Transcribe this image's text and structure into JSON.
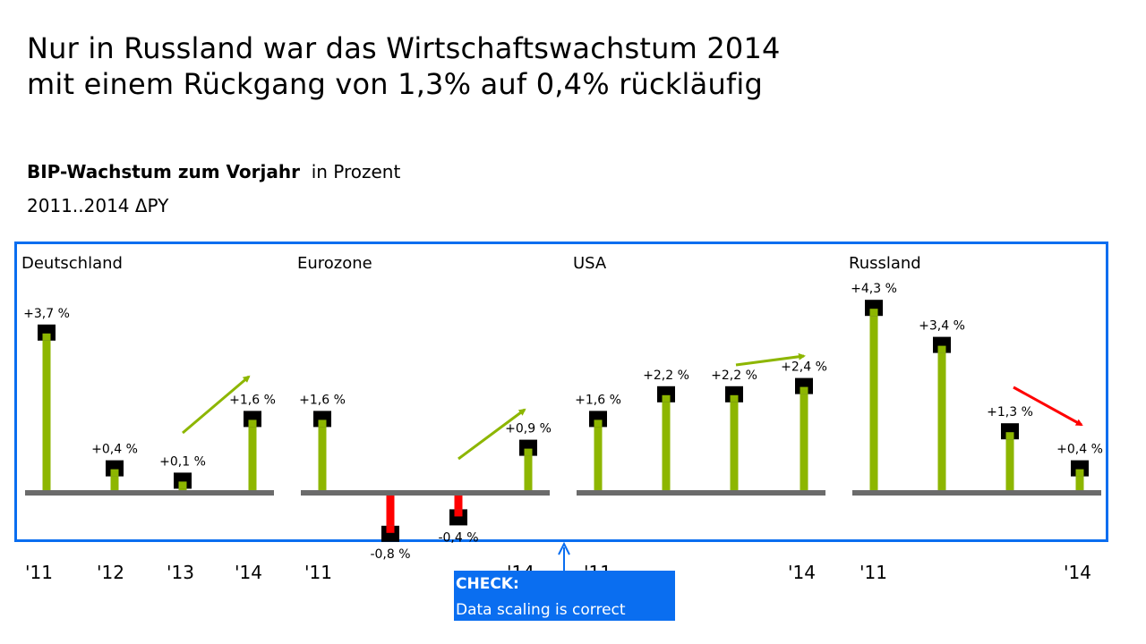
{
  "headline": {
    "line1": "Nur in Russland war das Wirtschaftswachstum 2014",
    "line2": "mit einem Rückgang von 1,3% auf 0,4% rückläufig"
  },
  "subtitle": {
    "bold": "BIP-Wachstum zum Vorjahr",
    "unit": "in Prozent"
  },
  "period": "2011..2014 ΔPY",
  "colors": {
    "positive": "#8db600",
    "negative": "#ff0000",
    "axis": "#6b6b6b",
    "marker": "#000000",
    "frame": "#0a6ef0"
  },
  "chart_data": {
    "type": "bar",
    "categories": [
      "'11",
      "'12",
      "'13",
      "'14"
    ],
    "unit": "%",
    "panels": [
      {
        "name": "Deutschland",
        "values": [
          3.7,
          0.4,
          0.1,
          1.6
        ],
        "labels": [
          "+3,7 %",
          "+0,4 %",
          "+0,1 %",
          "+1,6 %"
        ],
        "trend": "up"
      },
      {
        "name": "Eurozone",
        "values": [
          1.6,
          -0.8,
          -0.4,
          0.9
        ],
        "labels": [
          "+1,6 %",
          "-0,8 %",
          "-0,4 %",
          "+0,9 %"
        ],
        "trend": "up"
      },
      {
        "name": "USA",
        "values": [
          1.6,
          2.2,
          2.2,
          2.4
        ],
        "labels": [
          "+1,6 %",
          "+2,2 %",
          "+2,2 %",
          "+2,4 %"
        ],
        "trend": "up"
      },
      {
        "name": "Russland",
        "values": [
          4.3,
          3.4,
          1.3,
          0.4
        ],
        "labels": [
          "+4,3 %",
          "+3,4 %",
          "+1,3 %",
          "+0,4 %"
        ],
        "trend": "down"
      }
    ],
    "x_axis_labels": [
      "'11",
      "'12",
      "'13",
      "'14",
      "'11",
      "'14",
      "'11",
      "'14",
      "'11",
      "'14"
    ]
  },
  "check_note": {
    "title": "CHECK:",
    "text": "Data scaling is correct"
  }
}
